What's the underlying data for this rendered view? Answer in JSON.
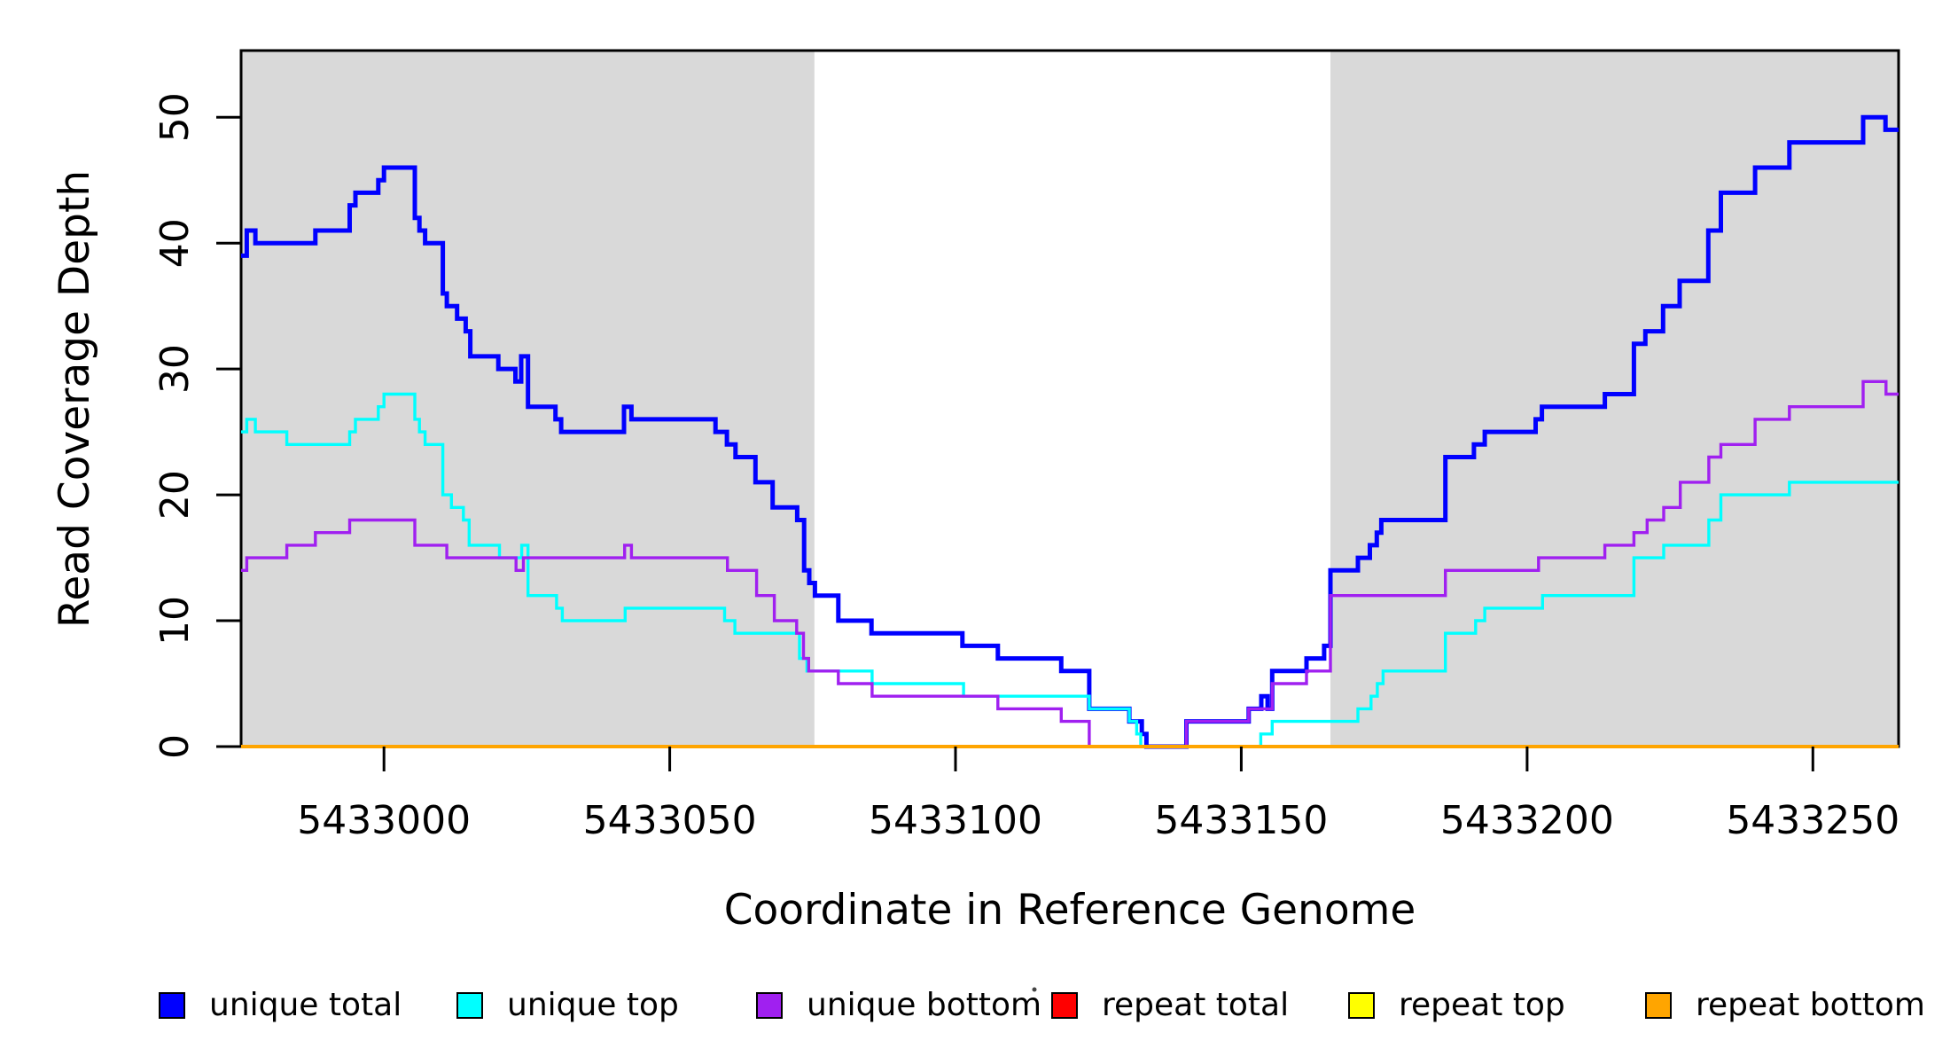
{
  "chart_data": {
    "type": "line",
    "subtype": "step-after",
    "title": "",
    "xlabel": "Coordinate in Reference Genome",
    "ylabel": "Read Coverage Depth",
    "xlim": [
      5432975,
      5433265
    ],
    "ylim": [
      0,
      55.3
    ],
    "x_ticks": [
      5433000,
      5433050,
      5433100,
      5433150,
      5433200,
      5433250
    ],
    "y_ticks": [
      0,
      10,
      20,
      30,
      40,
      50
    ],
    "grid": false,
    "legend_position": "bottom",
    "band_color": "#D9D9D9",
    "shaded_regions": [
      {
        "from": 5432975,
        "to": 5433075.3
      },
      {
        "from": 5433165.6,
        "to": 5433265
      }
    ],
    "series": [
      {
        "name": "unique total",
        "color": "#0000FF",
        "width": 5,
        "points": [
          [
            5432975,
            39
          ],
          [
            5432976,
            41
          ],
          [
            5432977.5,
            40
          ],
          [
            5432988,
            41
          ],
          [
            5432994,
            43
          ],
          [
            5432995,
            44
          ],
          [
            5432999,
            45
          ],
          [
            5433000,
            46
          ],
          [
            5433005.4,
            42
          ],
          [
            5433006.2,
            41
          ],
          [
            5433007.2,
            40
          ],
          [
            5433010.3,
            36
          ],
          [
            5433011,
            35
          ],
          [
            5433012.8,
            34
          ],
          [
            5433014.3,
            33
          ],
          [
            5433015.1,
            31
          ],
          [
            5433020,
            30
          ],
          [
            5433023,
            29
          ],
          [
            5433024,
            31
          ],
          [
            5433025.2,
            27
          ],
          [
            5433030,
            26
          ],
          [
            5433031,
            25
          ],
          [
            5433042,
            27
          ],
          [
            5433043.3,
            26
          ],
          [
            5433058,
            25
          ],
          [
            5433060,
            24
          ],
          [
            5433061.5,
            23
          ],
          [
            5433065,
            21
          ],
          [
            5433068,
            19
          ],
          [
            5433072.3,
            18
          ],
          [
            5433073.5,
            14
          ],
          [
            5433074.4,
            13
          ],
          [
            5433075.4,
            12
          ],
          [
            5433079.5,
            10
          ],
          [
            5433085.3,
            9
          ],
          [
            5433101.2,
            8
          ],
          [
            5433107.4,
            7
          ],
          [
            5433118.5,
            6
          ],
          [
            5433123.4,
            3
          ],
          [
            5433130.4,
            2
          ],
          [
            5433132.6,
            1
          ],
          [
            5433133.4,
            0
          ],
          [
            5433140.4,
            2
          ],
          [
            5433151.3,
            3
          ],
          [
            5433153.5,
            4
          ],
          [
            5433154.6,
            3
          ],
          [
            5433155.4,
            6
          ],
          [
            5433161.4,
            7
          ],
          [
            5433164.5,
            8
          ],
          [
            5433165.6,
            14
          ],
          [
            5433170.4,
            15
          ],
          [
            5433172.5,
            16
          ],
          [
            5433173.7,
            17
          ],
          [
            5433174.5,
            18
          ],
          [
            5433185.7,
            23
          ],
          [
            5433190.7,
            24
          ],
          [
            5433192.6,
            25
          ],
          [
            5433201.5,
            26
          ],
          [
            5433202.6,
            27
          ],
          [
            5433213.6,
            28
          ],
          [
            5433218.7,
            32
          ],
          [
            5433220.7,
            33
          ],
          [
            5433223.8,
            35
          ],
          [
            5433226.7,
            37
          ],
          [
            5433231.7,
            41
          ],
          [
            5433233.9,
            44
          ],
          [
            5433239.9,
            46
          ],
          [
            5433245.9,
            48
          ],
          [
            5433258.8,
            50
          ],
          [
            5433262.7,
            49
          ]
        ]
      },
      {
        "name": "unique top",
        "color": "#00FFFF",
        "width": 3.4,
        "points": [
          [
            5432975,
            25
          ],
          [
            5432976,
            26
          ],
          [
            5432977.5,
            25
          ],
          [
            5432983,
            24
          ],
          [
            5432994,
            25
          ],
          [
            5432995,
            26
          ],
          [
            5432999,
            27
          ],
          [
            5433000,
            28
          ],
          [
            5433005.4,
            26
          ],
          [
            5433006.2,
            25
          ],
          [
            5433007.2,
            24
          ],
          [
            5433010.3,
            20
          ],
          [
            5433011.8,
            19
          ],
          [
            5433013.9,
            18
          ],
          [
            5433014.9,
            16
          ],
          [
            5433020.2,
            15
          ],
          [
            5433024.1,
            16
          ],
          [
            5433025.2,
            12
          ],
          [
            5433030.2,
            11
          ],
          [
            5433031.2,
            10
          ],
          [
            5433042.2,
            11
          ],
          [
            5433059.6,
            10
          ],
          [
            5433061.4,
            9
          ],
          [
            5433072.7,
            7
          ],
          [
            5433074,
            6
          ],
          [
            5433085.4,
            5
          ],
          [
            5433101.4,
            4
          ],
          [
            5433123.4,
            3
          ],
          [
            5433130.4,
            2
          ],
          [
            5433131.7,
            1
          ],
          [
            5433132.4,
            0
          ],
          [
            5433153.4,
            1
          ],
          [
            5433155.4,
            2
          ],
          [
            5433170.4,
            3
          ],
          [
            5433172.7,
            4
          ],
          [
            5433173.8,
            5
          ],
          [
            5433174.8,
            6
          ],
          [
            5433185.7,
            9
          ],
          [
            5433191,
            10
          ],
          [
            5433192.6,
            11
          ],
          [
            5433202.7,
            12
          ],
          [
            5433218.7,
            15
          ],
          [
            5433223.9,
            16
          ],
          [
            5433231.8,
            18
          ],
          [
            5433233.9,
            20
          ],
          [
            5433245.9,
            21
          ]
        ]
      },
      {
        "name": "unique bottom",
        "color": "#A020F0",
        "width": 3.4,
        "points": [
          [
            5432975,
            14
          ],
          [
            5432976,
            15
          ],
          [
            5432983,
            16
          ],
          [
            5432988,
            17
          ],
          [
            5432994,
            18
          ],
          [
            5433005.4,
            16
          ],
          [
            5433011,
            15
          ],
          [
            5433023.1,
            14
          ],
          [
            5433024.4,
            15
          ],
          [
            5433042.1,
            16
          ],
          [
            5433043.3,
            15
          ],
          [
            5433060.1,
            14
          ],
          [
            5433065.2,
            12
          ],
          [
            5433068.3,
            10
          ],
          [
            5433072.2,
            9
          ],
          [
            5433073.4,
            7
          ],
          [
            5433074.3,
            6
          ],
          [
            5433079.5,
            5
          ],
          [
            5433085.4,
            4
          ],
          [
            5433107.4,
            3
          ],
          [
            5433118.5,
            2
          ],
          [
            5433123.4,
            0
          ],
          [
            5433140.4,
            2
          ],
          [
            5433151.3,
            3
          ],
          [
            5433155.4,
            5
          ],
          [
            5433161.4,
            6
          ],
          [
            5433165.6,
            12
          ],
          [
            5433185.7,
            14
          ],
          [
            5433202,
            15
          ],
          [
            5433213.6,
            16
          ],
          [
            5433218.7,
            17
          ],
          [
            5433221,
            18
          ],
          [
            5433223.9,
            19
          ],
          [
            5433226.8,
            21
          ],
          [
            5433231.8,
            23
          ],
          [
            5433233.9,
            24
          ],
          [
            5433239.9,
            26
          ],
          [
            5433245.9,
            27
          ],
          [
            5433258.8,
            29
          ],
          [
            5433262.8,
            28
          ]
        ]
      },
      {
        "name": "repeat total",
        "color": "#FF0000",
        "width": 4,
        "points": [
          [
            5432975,
            0
          ]
        ]
      },
      {
        "name": "repeat top",
        "color": "#FFFF00",
        "width": 4,
        "points": [
          [
            5432975,
            0
          ]
        ]
      },
      {
        "name": "repeat bottom",
        "color": "#FFA500",
        "width": 4,
        "points": [
          [
            5432975,
            0
          ]
        ]
      }
    ]
  }
}
